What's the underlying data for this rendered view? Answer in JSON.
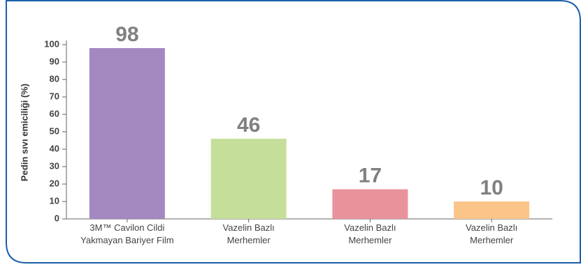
{
  "chart_data": {
    "type": "bar",
    "y_label": "Pedin sıvı emiciliği (%)",
    "categories": [
      "3M™ Cavilon Cildi\nYakmayan Bariyer Film",
      "Vazelin Bazlı\nMerhemler",
      "Vazelin Bazlı\nMerhemler",
      "Vazelin Bazlı\nMerhemler"
    ],
    "values": [
      98,
      46,
      17,
      10
    ],
    "colors": [
      "#a389c0",
      "#c5df9b",
      "#e8939b",
      "#fbc58a"
    ],
    "ylim": [
      0,
      100
    ],
    "yticks": [
      0,
      10,
      20,
      30,
      40,
      50,
      60,
      70,
      80,
      90,
      100
    ],
    "grid": false
  }
}
